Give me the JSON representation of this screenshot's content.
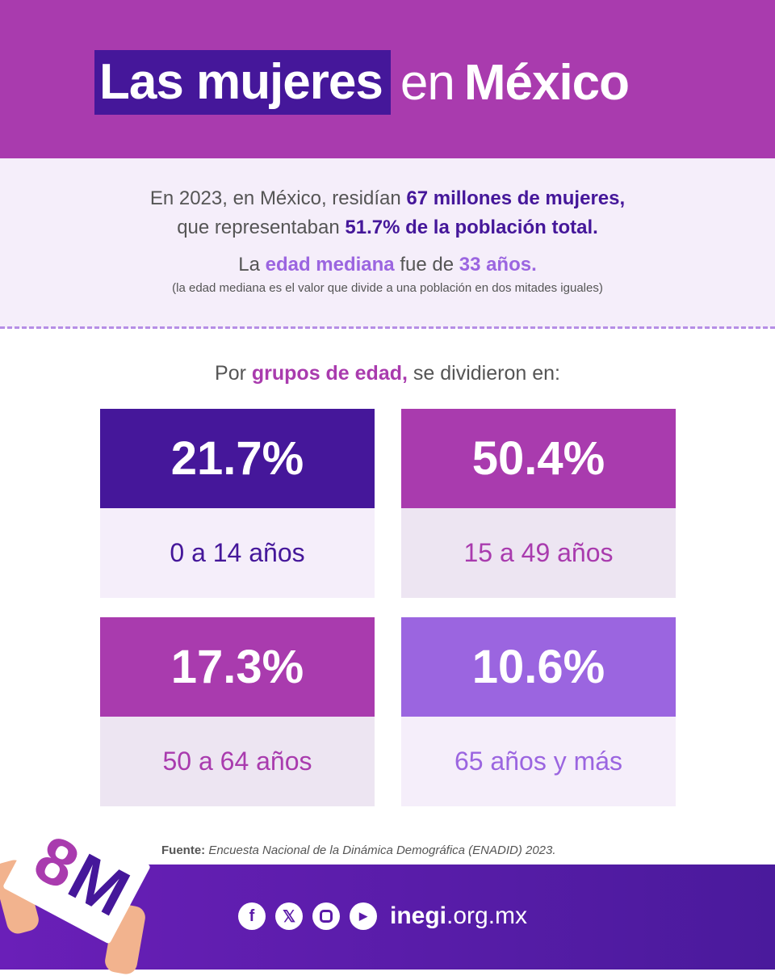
{
  "title": {
    "part1": "Las mujeres",
    "part2": "en",
    "part3": "México"
  },
  "intro": {
    "l1a": "En 2023, en México, residían ",
    "l1b": "67 millones de mujeres,",
    "l2a": "que representaban ",
    "l2b": "51.7% de la población total.",
    "l3a": "La ",
    "l3b": "edad mediana",
    "l3c": " fue de ",
    "l3d": "33 años.",
    "l4": "(la edad mediana es el valor que divide a una población en dos mitades iguales)"
  },
  "subtitle": {
    "a": "Por ",
    "b": "grupos de edad,",
    "c": " se dividieron en:"
  },
  "groups": [
    {
      "value": "21.7%",
      "label": "0 a 14 años",
      "color": "#45179a",
      "bg": "#f5eefa"
    },
    {
      "value": "50.4%",
      "label": "15 a 49 años",
      "color": "#a93bae",
      "bg": "#ede5f2"
    },
    {
      "value": "17.3%",
      "label": "50 a 64 años",
      "color": "#a93bae",
      "bg": "#ede5f2"
    },
    {
      "value": "10.6%",
      "label": "65 años y más",
      "color": "#9b65e0",
      "bg": "#f5eefa"
    }
  ],
  "source": {
    "label": "Fuente:",
    "text": " Encuesta Nacional de la Dinámica Demográfica (ENADID) 2023."
  },
  "footer": {
    "site_bold": "inegi",
    "site_rest": ".org.mx",
    "sign_a": "8",
    "sign_b": "M"
  }
}
